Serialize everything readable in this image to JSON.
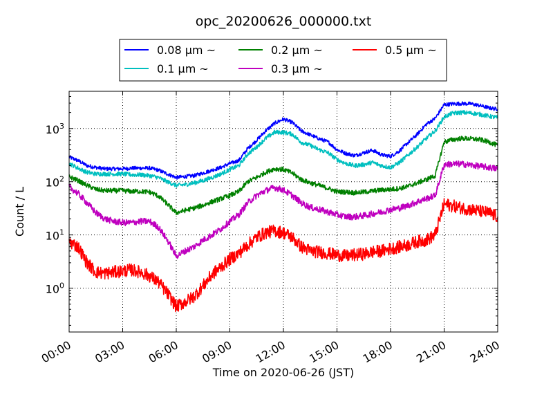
{
  "chart_data": {
    "type": "line",
    "title": "opc_20200626_000000.txt",
    "xlabel": "Time on 2020-06-26 (JST)",
    "ylabel": "Count / L",
    "x_unit": "hours",
    "xlim": [
      "00:00",
      "24:00"
    ],
    "x_tick_labels": [
      "00:00",
      "03:00",
      "06:00",
      "09:00",
      "12:00",
      "15:00",
      "18:00",
      "21:00",
      "24:00"
    ],
    "y_scale": "log",
    "ylim": [
      0.15,
      5000
    ],
    "y_ticks": [
      1,
      10,
      100,
      1000
    ],
    "y_tick_labels": [
      {
        "base": "10",
        "exp": "0"
      },
      {
        "base": "10",
        "exp": "1"
      },
      {
        "base": "10",
        "exp": "2"
      },
      {
        "base": "10",
        "exp": "3"
      }
    ],
    "grid": true,
    "legend_position": "top-center (above plot)",
    "x_times": [
      "00:00",
      "00:30",
      "01:00",
      "01:30",
      "02:00",
      "02:30",
      "03:00",
      "03:30",
      "04:00",
      "04:30",
      "05:00",
      "05:30",
      "06:00",
      "06:30",
      "07:00",
      "07:30",
      "08:00",
      "08:30",
      "09:00",
      "09:30",
      "10:00",
      "10:30",
      "11:00",
      "11:30",
      "12:00",
      "12:30",
      "13:00",
      "13:30",
      "14:00",
      "14:30",
      "15:00",
      "15:30",
      "16:00",
      "16:30",
      "17:00",
      "17:30",
      "18:00",
      "18:30",
      "19:00",
      "19:30",
      "20:00",
      "20:30",
      "21:00",
      "21:30",
      "22:00",
      "22:30",
      "23:00",
      "23:30",
      "24:00"
    ],
    "series": [
      {
        "name": "0.08 μm ~",
        "color": "#0000ff",
        "values": [
          290,
          250,
          200,
          185,
          175,
          175,
          175,
          180,
          180,
          180,
          165,
          140,
          120,
          125,
          130,
          145,
          165,
          185,
          220,
          250,
          420,
          600,
          900,
          1250,
          1500,
          1300,
          900,
          760,
          640,
          560,
          400,
          340,
          310,
          350,
          390,
          320,
          300,
          380,
          550,
          780,
          1200,
          1550,
          2800,
          2900,
          2950,
          2900,
          2700,
          2450,
          2300
        ]
      },
      {
        "name": "0.1 μm ~",
        "color": "#00bfbf",
        "values": [
          220,
          180,
          150,
          140,
          140,
          140,
          140,
          135,
          135,
          130,
          120,
          100,
          85,
          88,
          95,
          105,
          120,
          140,
          170,
          200,
          330,
          450,
          650,
          850,
          850,
          780,
          550,
          480,
          400,
          350,
          260,
          220,
          200,
          210,
          230,
          200,
          185,
          230,
          320,
          450,
          650,
          900,
          1650,
          1950,
          2000,
          1950,
          1850,
          1700,
          1600
        ]
      },
      {
        "name": "0.2 μm ~",
        "color": "#008000",
        "values": [
          125,
          105,
          85,
          72,
          68,
          68,
          68,
          66,
          66,
          64,
          54,
          38,
          26,
          29,
          32,
          36,
          42,
          48,
          55,
          65,
          100,
          120,
          150,
          175,
          170,
          145,
          110,
          95,
          85,
          75,
          65,
          64,
          62,
          64,
          67,
          70,
          72,
          75,
          82,
          95,
          110,
          130,
          560,
          620,
          650,
          640,
          620,
          560,
          480
        ]
      },
      {
        "name": "0.3 μm ~",
        "color": "#bf00bf",
        "values": [
          80,
          60,
          40,
          26,
          20,
          18,
          17,
          17,
          18,
          18,
          14,
          8,
          4,
          5,
          6,
          8,
          10,
          13,
          18,
          24,
          40,
          55,
          68,
          78,
          70,
          55,
          40,
          33,
          30,
          27,
          24,
          22,
          22,
          23,
          25,
          27,
          30,
          32,
          36,
          42,
          48,
          55,
          210,
          215,
          215,
          205,
          195,
          185,
          175
        ]
      },
      {
        "name": "0.5 μm ~",
        "color": "#ff0000",
        "values": [
          7.5,
          6,
          3,
          2.0,
          1.9,
          2.0,
          2.1,
          2.2,
          2.0,
          1.7,
          1.3,
          0.8,
          0.45,
          0.55,
          0.7,
          1.1,
          1.8,
          2.5,
          3.5,
          4.5,
          6.5,
          9,
          11,
          12,
          11,
          9,
          6,
          5,
          4.8,
          4.5,
          4.2,
          4.0,
          4.2,
          4.4,
          4.8,
          5.0,
          5.5,
          6,
          6.5,
          7.5,
          8,
          10,
          38,
          35,
          32,
          30,
          28,
          26,
          22
        ]
      }
    ]
  }
}
